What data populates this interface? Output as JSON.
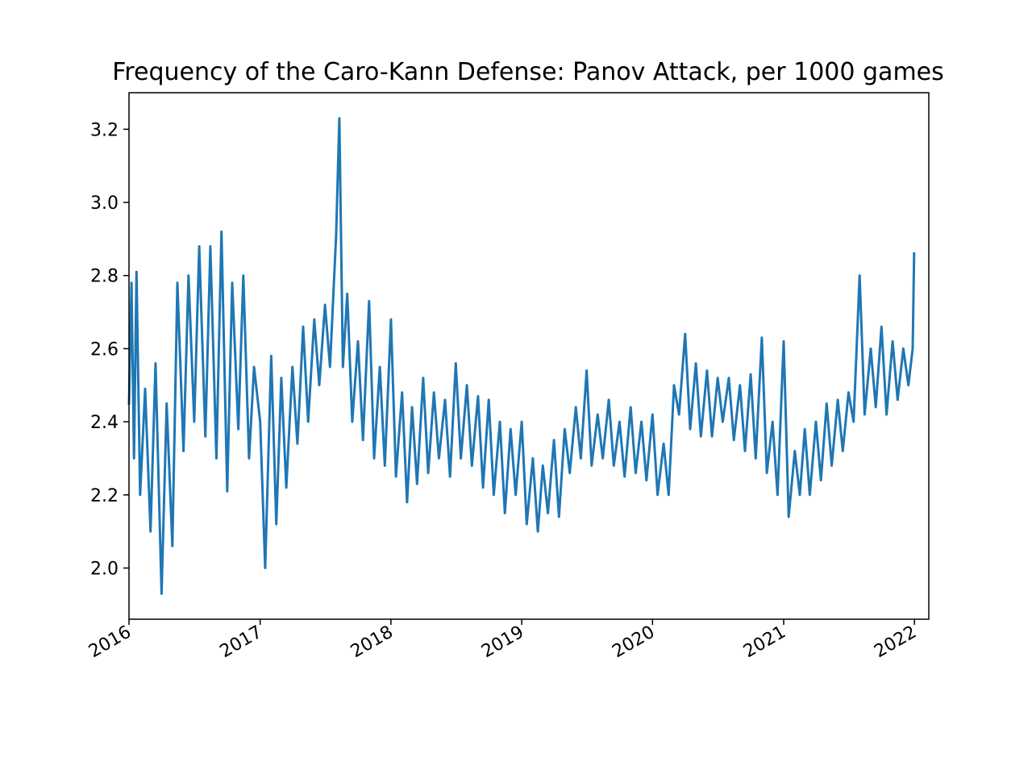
{
  "chart_data": {
    "type": "line",
    "title": "Frequency of the Caro-Kann Defense: Panov Attack, per 1000 games",
    "xlabel": "",
    "ylabel": "",
    "x_axis": "date",
    "xlim": [
      "2016-01-01",
      "2022-02-10"
    ],
    "ylim": [
      1.86,
      3.3
    ],
    "x_ticks": [
      "2016-01-01",
      "2017-01-01",
      "2018-01-01",
      "2019-01-01",
      "2020-01-01",
      "2021-01-01",
      "2022-01-01"
    ],
    "x_tick_labels": [
      "2016",
      "2017",
      "2018",
      "2019",
      "2020",
      "2021",
      "2022"
    ],
    "y_ticks": [
      2.0,
      2.2,
      2.4,
      2.6,
      2.8,
      3.0,
      3.2
    ],
    "y_tick_labels": [
      "2.0",
      "2.2",
      "2.4",
      "2.6",
      "2.8",
      "3.0",
      "3.2"
    ],
    "grid": false,
    "legend": "none",
    "series_color": "#1f77b4",
    "sampling": "daily; values below are a smoothed reading (every ~7 days) plus notable spikes",
    "series": [
      {
        "x": [
          "2016-01-01",
          "2016-01-08",
          "2016-01-15",
          "2016-01-22",
          "2016-02-01",
          "2016-02-15",
          "2016-03-01",
          "2016-03-15",
          "2016-04-01",
          "2016-04-15",
          "2016-05-01",
          "2016-05-15",
          "2016-06-01",
          "2016-06-15",
          "2016-07-01",
          "2016-07-15",
          "2016-08-01",
          "2016-08-15",
          "2016-09-01",
          "2016-09-15",
          "2016-10-01",
          "2016-10-15",
          "2016-11-01",
          "2016-11-15",
          "2016-12-01",
          "2016-12-15",
          "2017-01-01",
          "2017-01-15",
          "2017-02-01",
          "2017-02-15",
          "2017-03-01",
          "2017-03-15",
          "2017-04-01",
          "2017-04-15",
          "2017-05-01",
          "2017-05-15",
          "2017-06-01",
          "2017-06-15",
          "2017-07-01",
          "2017-07-15",
          "2017-08-01",
          "2017-08-10",
          "2017-08-20",
          "2017-09-01",
          "2017-09-15",
          "2017-10-01",
          "2017-10-15",
          "2017-11-01",
          "2017-11-15",
          "2017-12-01",
          "2017-12-15",
          "2018-01-01",
          "2018-01-15",
          "2018-02-01",
          "2018-02-15",
          "2018-03-01",
          "2018-03-15",
          "2018-04-01",
          "2018-04-15",
          "2018-05-01",
          "2018-05-15",
          "2018-06-01",
          "2018-06-15",
          "2018-07-01",
          "2018-07-15",
          "2018-08-01",
          "2018-08-15",
          "2018-09-01",
          "2018-09-15",
          "2018-10-01",
          "2018-10-15",
          "2018-11-01",
          "2018-11-15",
          "2018-12-01",
          "2018-12-15",
          "2019-01-01",
          "2019-01-15",
          "2019-02-01",
          "2019-02-15",
          "2019-03-01",
          "2019-03-15",
          "2019-04-01",
          "2019-04-15",
          "2019-05-01",
          "2019-05-15",
          "2019-06-01",
          "2019-06-15",
          "2019-07-01",
          "2019-07-15",
          "2019-08-01",
          "2019-08-15",
          "2019-09-01",
          "2019-09-15",
          "2019-10-01",
          "2019-10-15",
          "2019-11-01",
          "2019-11-15",
          "2019-12-01",
          "2019-12-15",
          "2020-01-01",
          "2020-01-15",
          "2020-02-01",
          "2020-02-15",
          "2020-03-01",
          "2020-03-15",
          "2020-04-01",
          "2020-04-15",
          "2020-05-01",
          "2020-05-15",
          "2020-06-01",
          "2020-06-15",
          "2020-07-01",
          "2020-07-15",
          "2020-08-01",
          "2020-08-15",
          "2020-09-01",
          "2020-09-15",
          "2020-10-01",
          "2020-10-15",
          "2020-11-01",
          "2020-11-15",
          "2020-12-01",
          "2020-12-15",
          "2021-01-01",
          "2021-01-15",
          "2021-02-01",
          "2021-02-15",
          "2021-03-01",
          "2021-03-15",
          "2021-04-01",
          "2021-04-15",
          "2021-05-01",
          "2021-05-15",
          "2021-06-01",
          "2021-06-15",
          "2021-07-01",
          "2021-07-15",
          "2021-08-01",
          "2021-08-15",
          "2021-09-01",
          "2021-09-15",
          "2021-10-01",
          "2021-10-15",
          "2021-11-01",
          "2021-11-15",
          "2021-12-01",
          "2021-12-15",
          "2021-12-27",
          "2021-12-31"
        ],
        "y": [
          2.45,
          2.78,
          2.3,
          2.81,
          2.2,
          2.49,
          2.1,
          2.56,
          1.93,
          2.45,
          2.06,
          2.78,
          2.32,
          2.8,
          2.4,
          2.88,
          2.36,
          2.88,
          2.3,
          2.92,
          2.21,
          2.78,
          2.38,
          2.8,
          2.3,
          2.55,
          2.4,
          2.0,
          2.58,
          2.12,
          2.52,
          2.22,
          2.55,
          2.34,
          2.66,
          2.4,
          2.68,
          2.5,
          2.72,
          2.55,
          2.91,
          3.23,
          2.55,
          2.75,
          2.4,
          2.62,
          2.35,
          2.73,
          2.3,
          2.55,
          2.28,
          2.68,
          2.25,
          2.48,
          2.18,
          2.44,
          2.23,
          2.52,
          2.26,
          2.48,
          2.3,
          2.46,
          2.25,
          2.56,
          2.3,
          2.5,
          2.28,
          2.47,
          2.22,
          2.46,
          2.2,
          2.4,
          2.15,
          2.38,
          2.2,
          2.4,
          2.12,
          2.3,
          2.1,
          2.28,
          2.15,
          2.35,
          2.14,
          2.38,
          2.26,
          2.44,
          2.3,
          2.54,
          2.28,
          2.42,
          2.3,
          2.46,
          2.28,
          2.4,
          2.25,
          2.44,
          2.26,
          2.4,
          2.24,
          2.42,
          2.2,
          2.34,
          2.2,
          2.5,
          2.42,
          2.64,
          2.38,
          2.56,
          2.36,
          2.54,
          2.36,
          2.52,
          2.4,
          2.52,
          2.35,
          2.5,
          2.32,
          2.53,
          2.3,
          2.63,
          2.26,
          2.4,
          2.2,
          2.62,
          2.14,
          2.32,
          2.2,
          2.38,
          2.2,
          2.4,
          2.24,
          2.45,
          2.28,
          2.46,
          2.32,
          2.48,
          2.4,
          2.8,
          2.42,
          2.6,
          2.44,
          2.66,
          2.42,
          2.62,
          2.46,
          2.6,
          2.5,
          2.6,
          2.86
        ]
      }
    ]
  }
}
